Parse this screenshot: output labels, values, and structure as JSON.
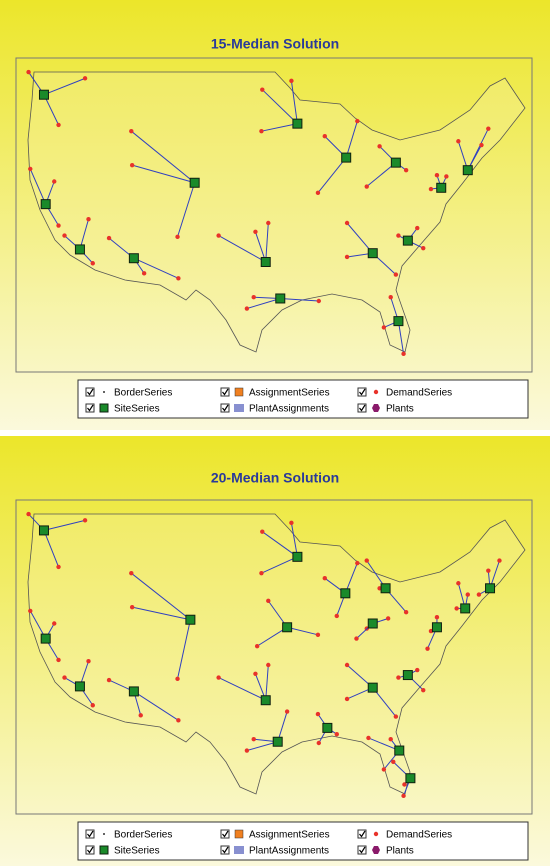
{
  "panels": [
    {
      "title": "15-Median Solution",
      "legend": [
        "BorderSeries",
        "AssignmentSeries",
        "DemandSeries",
        "SiteSeries",
        "PlantAssignments",
        "Plants"
      ],
      "sites": [
        {
          "lon": -122.2,
          "lat": 46.4,
          "demand": [
            [
              -124,
              48.2
            ],
            [
              -117.4,
              47.7
            ],
            [
              -120.5,
              44.0
            ]
          ]
        },
        {
          "lon": -122.0,
          "lat": 37.7,
          "demand": [
            [
              -123.8,
              40.5
            ],
            [
              -121,
              39.5
            ],
            [
              -120.5,
              36
            ]
          ]
        },
        {
          "lon": -118.0,
          "lat": 34.1,
          "demand": [
            [
              -116.5,
              33
            ],
            [
              -119.8,
              35.2
            ],
            [
              -117,
              36.5
            ]
          ]
        },
        {
          "lon": -111.7,
          "lat": 33.4,
          "demand": [
            [
              -114.6,
              35
            ],
            [
              -110.5,
              32.2
            ],
            [
              -106.5,
              31.8
            ]
          ]
        },
        {
          "lon": -104.6,
          "lat": 39.4,
          "demand": [
            [
              -111.9,
              40.8
            ],
            [
              -112,
              43.5
            ],
            [
              -106.6,
              35.1
            ]
          ]
        },
        {
          "lon": -92.6,
          "lat": 44.1,
          "demand": [
            [
              -96.7,
              46.8
            ],
            [
              -93.3,
              47.5
            ],
            [
              -96.8,
              43.5
            ]
          ]
        },
        {
          "lon": -86.9,
          "lat": 41.4,
          "demand": [
            [
              -89.4,
              43.1
            ],
            [
              -90.2,
              38.6
            ],
            [
              -85.6,
              44.3
            ]
          ]
        },
        {
          "lon": -81.1,
          "lat": 41.0,
          "demand": [
            [
              -83.0,
              42.3
            ],
            [
              -84.5,
              39.1
            ],
            [
              -79.9,
              40.4
            ]
          ]
        },
        {
          "lon": -72.7,
          "lat": 40.4,
          "demand": [
            [
              -70.3,
              43.7
            ],
            [
              -71.1,
              42.4
            ],
            [
              -73.8,
              42.7
            ]
          ]
        },
        {
          "lon": -75.8,
          "lat": 39.0,
          "demand": [
            [
              -77.0,
              38.9
            ],
            [
              -76.3,
              40.0
            ],
            [
              -75.2,
              39.9
            ]
          ]
        },
        {
          "lon": -79.7,
          "lat": 34.8,
          "demand": [
            [
              -77.9,
              34.2
            ],
            [
              -80.8,
              35.2
            ],
            [
              -78.6,
              35.8
            ]
          ]
        },
        {
          "lon": -83.8,
          "lat": 33.8,
          "demand": [
            [
              -86.8,
              33.5
            ],
            [
              -86.8,
              36.2
            ],
            [
              -81.1,
              32.1
            ]
          ]
        },
        {
          "lon": -96.3,
          "lat": 33.1,
          "demand": [
            [
              -97.5,
              35.5
            ],
            [
              -101.8,
              35.2
            ],
            [
              -96.0,
              36.2
            ]
          ]
        },
        {
          "lon": -94.6,
          "lat": 30.2,
          "demand": [
            [
              -97.7,
              30.3
            ],
            [
              -98.5,
              29.4
            ],
            [
              -90.1,
              30.0
            ]
          ]
        },
        {
          "lon": -80.8,
          "lat": 28.4,
          "demand": [
            [
              -82.5,
              27.9
            ],
            [
              -80.2,
              25.8
            ],
            [
              -81.7,
              30.3
            ]
          ]
        }
      ]
    },
    {
      "title": "20-Median Solution",
      "legend": [
        "BorderSeries",
        "AssignmentSeries",
        "DemandSeries",
        "SiteSeries",
        "PlantAssignments",
        "Plants"
      ],
      "sites": [
        {
          "lon": -122.2,
          "lat": 46.9,
          "demand": [
            [
              -124,
              48.2
            ],
            [
              -117.4,
              47.7
            ],
            [
              -120.5,
              44.0
            ]
          ]
        },
        {
          "lon": -122.0,
          "lat": 38.3,
          "demand": [
            [
              -123.8,
              40.5
            ],
            [
              -121,
              39.5
            ],
            [
              -120.5,
              36.6
            ]
          ]
        },
        {
          "lon": -118.0,
          "lat": 34.5,
          "demand": [
            [
              -116.5,
              33
            ],
            [
              -119.8,
              35.2
            ],
            [
              -117,
              36.5
            ]
          ]
        },
        {
          "lon": -111.7,
          "lat": 34.1,
          "demand": [
            [
              -114.6,
              35
            ],
            [
              -110.9,
              32.2
            ],
            [
              -106.5,
              31.8
            ]
          ]
        },
        {
          "lon": -105.1,
          "lat": 39.8,
          "demand": [
            [
              -111.9,
              40.8
            ],
            [
              -112,
              43.5
            ],
            [
              -106.6,
              35.1
            ]
          ]
        },
        {
          "lon": -92.6,
          "lat": 44.8,
          "demand": [
            [
              -96.7,
              46.8
            ],
            [
              -93.3,
              47.5
            ],
            [
              -96.8,
              43.5
            ]
          ]
        },
        {
          "lon": -93.8,
          "lat": 39.2,
          "demand": [
            [
              -97.3,
              37.7
            ],
            [
              -96.0,
              41.3
            ],
            [
              -90.2,
              38.6
            ]
          ]
        },
        {
          "lon": -87.0,
          "lat": 41.9,
          "demand": [
            [
              -89.4,
              43.1
            ],
            [
              -85.6,
              44.3
            ],
            [
              -88.0,
              40.1
            ]
          ]
        },
        {
          "lon": -82.3,
          "lat": 42.3,
          "demand": [
            [
              -83.0,
              42.3
            ],
            [
              -84.5,
              44.5
            ],
            [
              -79.9,
              40.4
            ]
          ]
        },
        {
          "lon": -83.8,
          "lat": 39.5,
          "demand": [
            [
              -84.5,
              39.1
            ],
            [
              -85.7,
              38.3
            ],
            [
              -82.0,
              39.9
            ]
          ]
        },
        {
          "lon": -70.1,
          "lat": 42.3,
          "demand": [
            [
              -70.3,
              43.7
            ],
            [
              -71.4,
              41.8
            ],
            [
              -69.0,
              44.5
            ]
          ]
        },
        {
          "lon": -73.0,
          "lat": 40.7,
          "demand": [
            [
              -73.8,
              42.7
            ],
            [
              -74.0,
              40.7
            ],
            [
              -72.7,
              41.8
            ]
          ]
        },
        {
          "lon": -76.3,
          "lat": 39.2,
          "demand": [
            [
              -77.0,
              38.9
            ],
            [
              -76.3,
              40.0
            ],
            [
              -77.4,
              37.5
            ]
          ]
        },
        {
          "lon": -79.7,
          "lat": 35.4,
          "demand": [
            [
              -77.9,
              34.2
            ],
            [
              -80.8,
              35.2
            ],
            [
              -78.6,
              35.8
            ]
          ]
        },
        {
          "lon": -83.8,
          "lat": 34.4,
          "demand": [
            [
              -86.8,
              33.5
            ],
            [
              -86.8,
              36.2
            ],
            [
              -81.1,
              32.1
            ]
          ]
        },
        {
          "lon": -96.3,
          "lat": 33.4,
          "demand": [
            [
              -97.5,
              35.5
            ],
            [
              -101.8,
              35.2
            ],
            [
              -96.0,
              36.2
            ]
          ]
        },
        {
          "lon": -94.9,
          "lat": 30.1,
          "demand": [
            [
              -97.7,
              30.3
            ],
            [
              -98.5,
              29.4
            ],
            [
              -93.8,
              32.5
            ]
          ]
        },
        {
          "lon": -89.1,
          "lat": 31.2,
          "demand": [
            [
              -90.1,
              30.0
            ],
            [
              -88.0,
              30.7
            ],
            [
              -90.2,
              32.3
            ]
          ]
        },
        {
          "lon": -80.7,
          "lat": 29.4,
          "demand": [
            [
              -81.7,
              30.3
            ],
            [
              -82.5,
              27.9
            ],
            [
              -84.3,
              30.4
            ]
          ]
        },
        {
          "lon": -79.4,
          "lat": 27.2,
          "demand": [
            [
              -80.2,
              25.8
            ],
            [
              -80.1,
              26.7
            ],
            [
              -81.4,
              28.5
            ]
          ]
        }
      ]
    }
  ]
}
